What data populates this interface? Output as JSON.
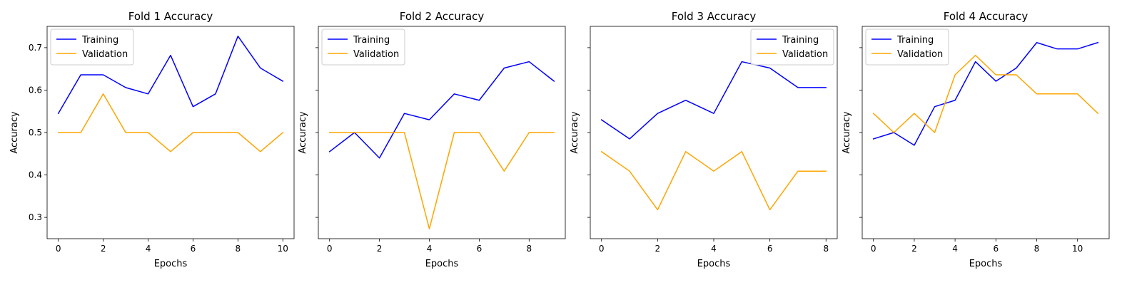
{
  "colors": {
    "training": "#0000ff",
    "validation": "#ffa500"
  },
  "chart_data": [
    {
      "type": "line",
      "title": "Fold 1 Accuracy",
      "xlabel": "Epochs",
      "ylabel": "Accuracy",
      "xticks": [
        0,
        2,
        4,
        6,
        8,
        10
      ],
      "yticks": [
        0.3,
        0.4,
        0.5,
        0.6,
        0.7
      ],
      "show_ytick_labels": true,
      "legend_position": "upper left",
      "grid": false,
      "x": [
        0,
        1,
        2,
        3,
        4,
        5,
        6,
        7,
        8,
        9,
        10
      ],
      "series": [
        {
          "name": "Training",
          "values": [
            0.545,
            0.636,
            0.636,
            0.606,
            0.591,
            0.682,
            0.561,
            0.591,
            0.727,
            0.652,
            0.621
          ]
        },
        {
          "name": "Validation",
          "values": [
            0.5,
            0.5,
            0.591,
            0.5,
            0.5,
            0.455,
            0.5,
            0.5,
            0.5,
            0.455,
            0.5
          ]
        }
      ]
    },
    {
      "type": "line",
      "title": "Fold 2 Accuracy",
      "xlabel": "Epochs",
      "ylabel": "Accuracy",
      "xticks": [
        0,
        2,
        4,
        6,
        8
      ],
      "yticks": [
        0.3,
        0.4,
        0.5,
        0.6,
        0.7
      ],
      "show_ytick_labels": false,
      "legend_position": "upper left",
      "grid": false,
      "x": [
        0,
        1,
        2,
        3,
        4,
        5,
        6,
        7,
        8,
        9
      ],
      "series": [
        {
          "name": "Training",
          "values": [
            0.455,
            0.5,
            0.44,
            0.545,
            0.53,
            0.591,
            0.576,
            0.652,
            0.667,
            0.621
          ]
        },
        {
          "name": "Validation",
          "values": [
            0.5,
            0.5,
            0.5,
            0.5,
            0.273,
            0.5,
            0.5,
            0.409,
            0.5,
            0.5
          ]
        }
      ]
    },
    {
      "type": "line",
      "title": "Fold 3 Accuracy",
      "xlabel": "Epochs",
      "ylabel": "Accuracy",
      "xticks": [
        0,
        2,
        4,
        6,
        8
      ],
      "yticks": [
        0.3,
        0.4,
        0.5,
        0.6,
        0.7
      ],
      "show_ytick_labels": false,
      "legend_position": "upper right",
      "grid": false,
      "x": [
        0,
        1,
        2,
        3,
        4,
        5,
        6,
        7,
        8
      ],
      "series": [
        {
          "name": "Training",
          "values": [
            0.53,
            0.485,
            0.545,
            0.576,
            0.545,
            0.667,
            0.652,
            0.606,
            0.606
          ]
        },
        {
          "name": "Validation",
          "values": [
            0.455,
            0.409,
            0.318,
            0.455,
            0.409,
            0.455,
            0.318,
            0.409,
            0.409
          ]
        }
      ]
    },
    {
      "type": "line",
      "title": "Fold 4 Accuracy",
      "xlabel": "Epochs",
      "ylabel": "Accuracy",
      "xticks": [
        0,
        2,
        4,
        6,
        8,
        10
      ],
      "yticks": [
        0.3,
        0.4,
        0.5,
        0.6,
        0.7
      ],
      "show_ytick_labels": false,
      "legend_position": "upper left",
      "grid": false,
      "x": [
        0,
        1,
        2,
        3,
        4,
        5,
        6,
        7,
        8,
        9,
        10,
        11
      ],
      "series": [
        {
          "name": "Training",
          "values": [
            0.485,
            0.5,
            0.47,
            0.561,
            0.576,
            0.667,
            0.621,
            0.652,
            0.712,
            0.697,
            0.697,
            0.712
          ]
        },
        {
          "name": "Validation",
          "values": [
            0.545,
            0.5,
            0.545,
            0.5,
            0.636,
            0.682,
            0.636,
            0.636,
            0.591,
            0.591,
            0.591,
            0.545
          ]
        }
      ]
    }
  ]
}
